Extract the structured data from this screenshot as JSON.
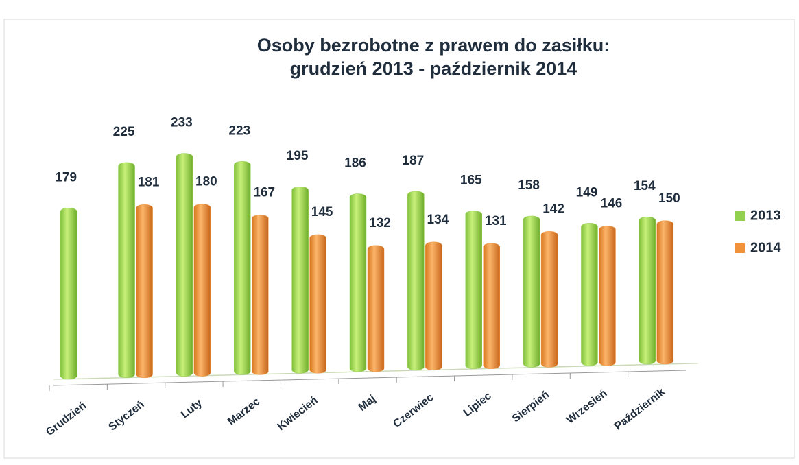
{
  "chart_data": {
    "type": "bar",
    "title": "Osoby bezrobotne z prawem do zasiłku:",
    "subtitle": "grudzień 2013 - październik 2014",
    "categories": [
      "Grudzień",
      "Styczeń",
      "Luty",
      "Marzec",
      "Kwiecień",
      "Maj",
      "Czerwiec",
      "Lipiec",
      "Sierpień",
      "Wrzesień",
      "Październik"
    ],
    "series": [
      {
        "name": "2013",
        "color": "#92d050",
        "values": [
          179,
          225,
          233,
          223,
          195,
          186,
          187,
          165,
          158,
          149,
          154
        ]
      },
      {
        "name": "2014",
        "color": "#f0923a",
        "values": [
          null,
          181,
          180,
          167,
          145,
          132,
          134,
          131,
          142,
          146,
          150
        ]
      }
    ],
    "legend": "right"
  }
}
